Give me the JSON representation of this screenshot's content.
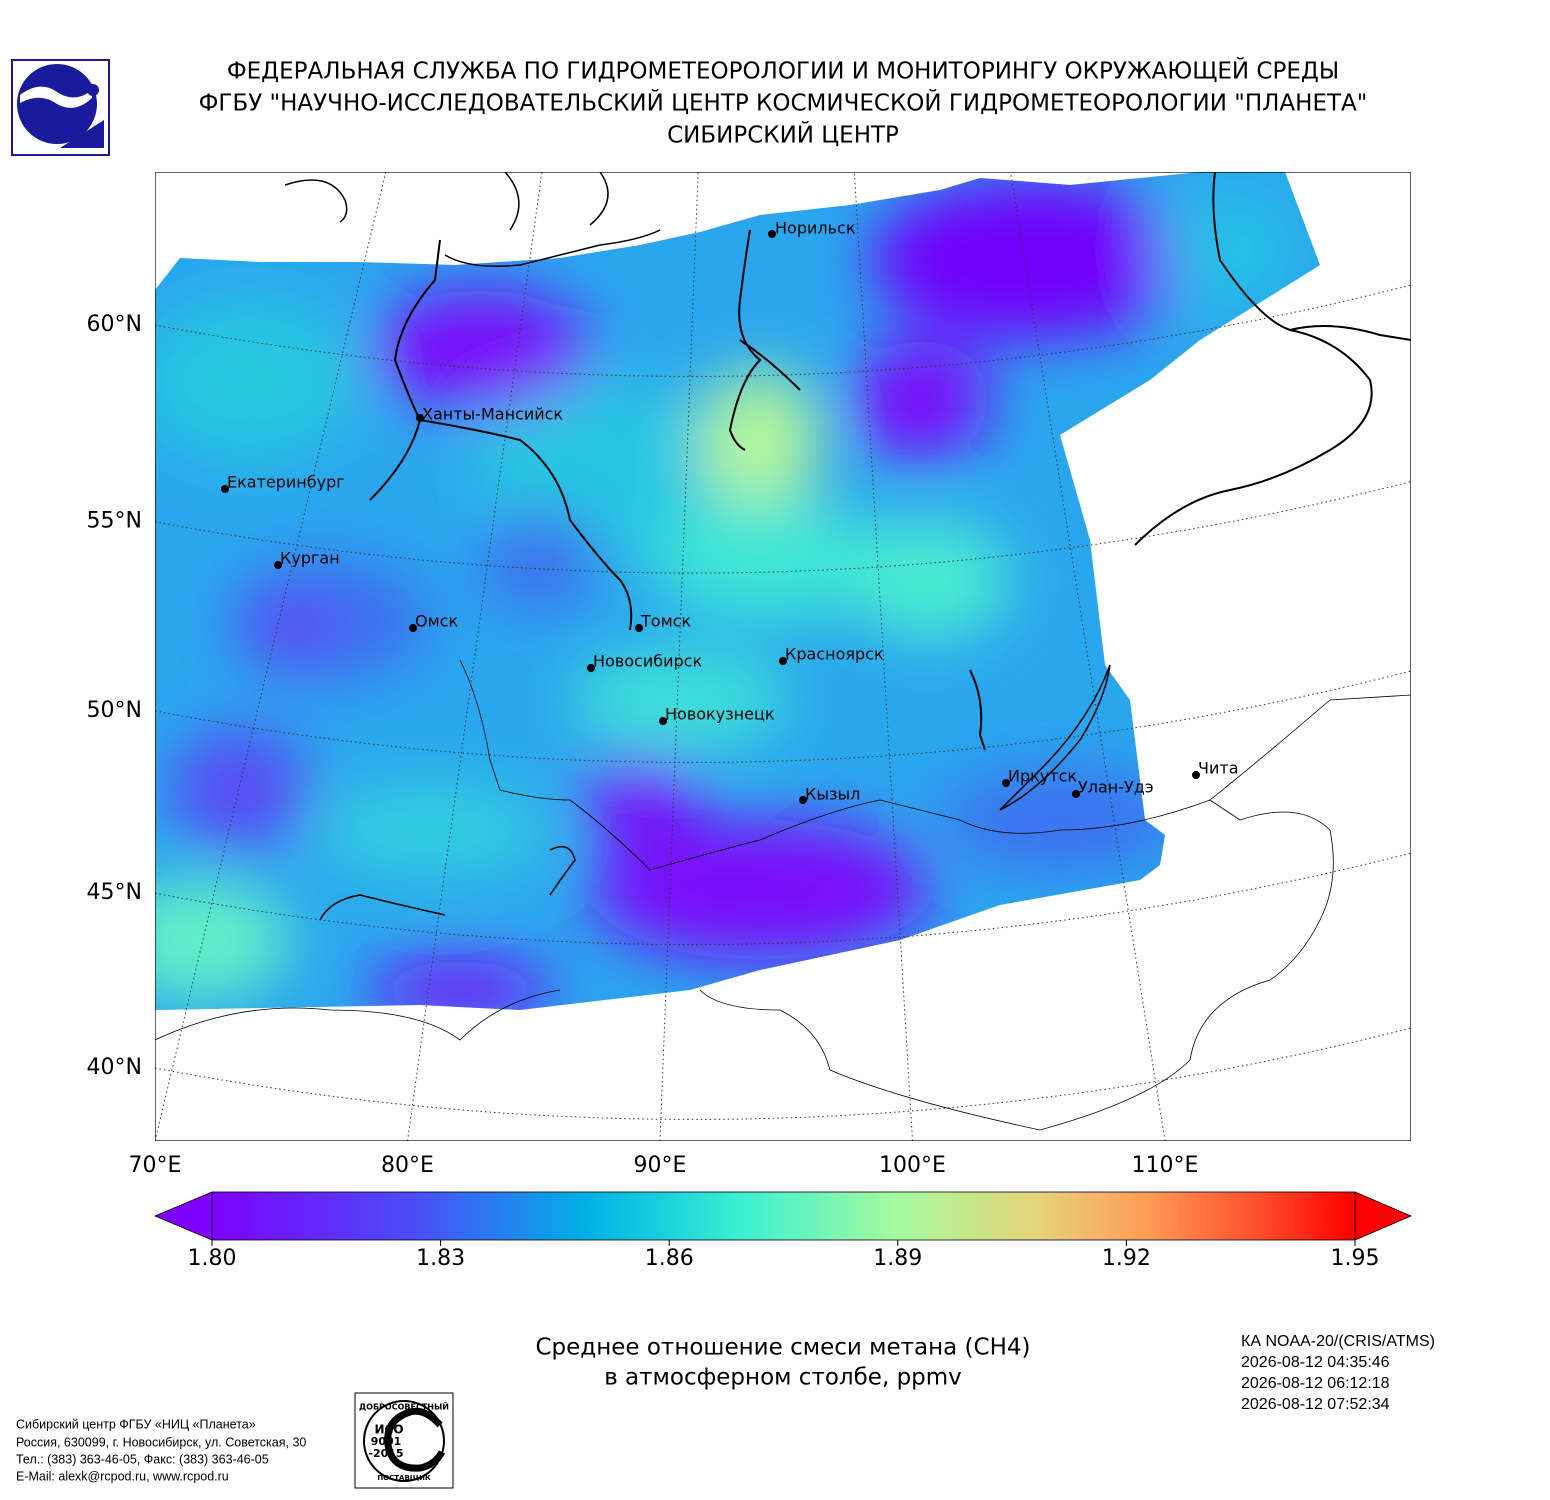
{
  "header": {
    "lines": [
      "ФЕДЕРАЛЬНАЯ СЛУЖБА ПО ГИДРОМЕТЕОРОЛОГИИ И МОНИТОРИНГУ ОКРУЖАЮЩЕЙ СРЕДЫ",
      "ФГБУ \"НАУЧНО-ИССЛЕДОВАТЕЛЬСКИЙ ЦЕНТР КОСМИЧЕСКОЙ ГИДРОМЕТЕОРОЛОГИИ \"ПЛАНЕТА\"",
      "СИБИРСКИЙ ЦЕНТР"
    ]
  },
  "map": {
    "lat_ticks": [
      {
        "value": 60,
        "label": "60°N"
      },
      {
        "value": 55,
        "label": "55°N"
      },
      {
        "value": 50,
        "label": "50°N"
      },
      {
        "value": 45,
        "label": "45°N"
      },
      {
        "value": 40,
        "label": "40°N"
      }
    ],
    "lon_ticks": [
      {
        "value": 70,
        "label": "70°E"
      },
      {
        "value": 80,
        "label": "80°E"
      },
      {
        "value": 90,
        "label": "90°E"
      },
      {
        "value": 100,
        "label": "100°E"
      },
      {
        "value": 110,
        "label": "110°E"
      }
    ],
    "cities": [
      "Норильск",
      "Ханты-Мансийск",
      "Екатеринбург",
      "Курган",
      "Омск",
      "Томск",
      "Новосибирск",
      "Красноярск",
      "Новокузнецк",
      "Иркутск",
      "Улан-Удэ",
      "Чита",
      "Кызыл"
    ]
  },
  "colorbar": {
    "lim": [
      1.8,
      1.95
    ],
    "ticks": [
      {
        "value": 1.8,
        "label": "1.80"
      },
      {
        "value": 1.83,
        "label": "1.83"
      },
      {
        "value": 1.86,
        "label": "1.86"
      },
      {
        "value": 1.89,
        "label": "1.89"
      },
      {
        "value": 1.92,
        "label": "1.92"
      },
      {
        "value": 1.95,
        "label": "1.95"
      }
    ]
  },
  "caption": [
    "Среднее отношение смеси метана (CH4)",
    "в атмосферном столбе, ppmv"
  ],
  "satellite": [
    "КА NOAA-20/(CRIS/ATMS)",
    "2026-08-12 04:35:46",
    "2026-08-12 06:12:18",
    "2026-08-12 07:52:34"
  ],
  "footer": [
    "Сибирский центр ФГБУ «НИЦ «Планета»",
    "Россия, 630099, г. Новосибирск, ул. Советская, 30",
    "Тел.: (383) 363-46-05, Факс: (383) 363-46-05",
    "E-Mail: alexk@rcpod.ru, www.rcpod.ru"
  ],
  "iso_logo": [
    "ДОБРОСОВЕСТНЫЙ",
    "ИСО",
    "9001",
    "-2015",
    "ПОСТАВЩИК"
  ]
}
